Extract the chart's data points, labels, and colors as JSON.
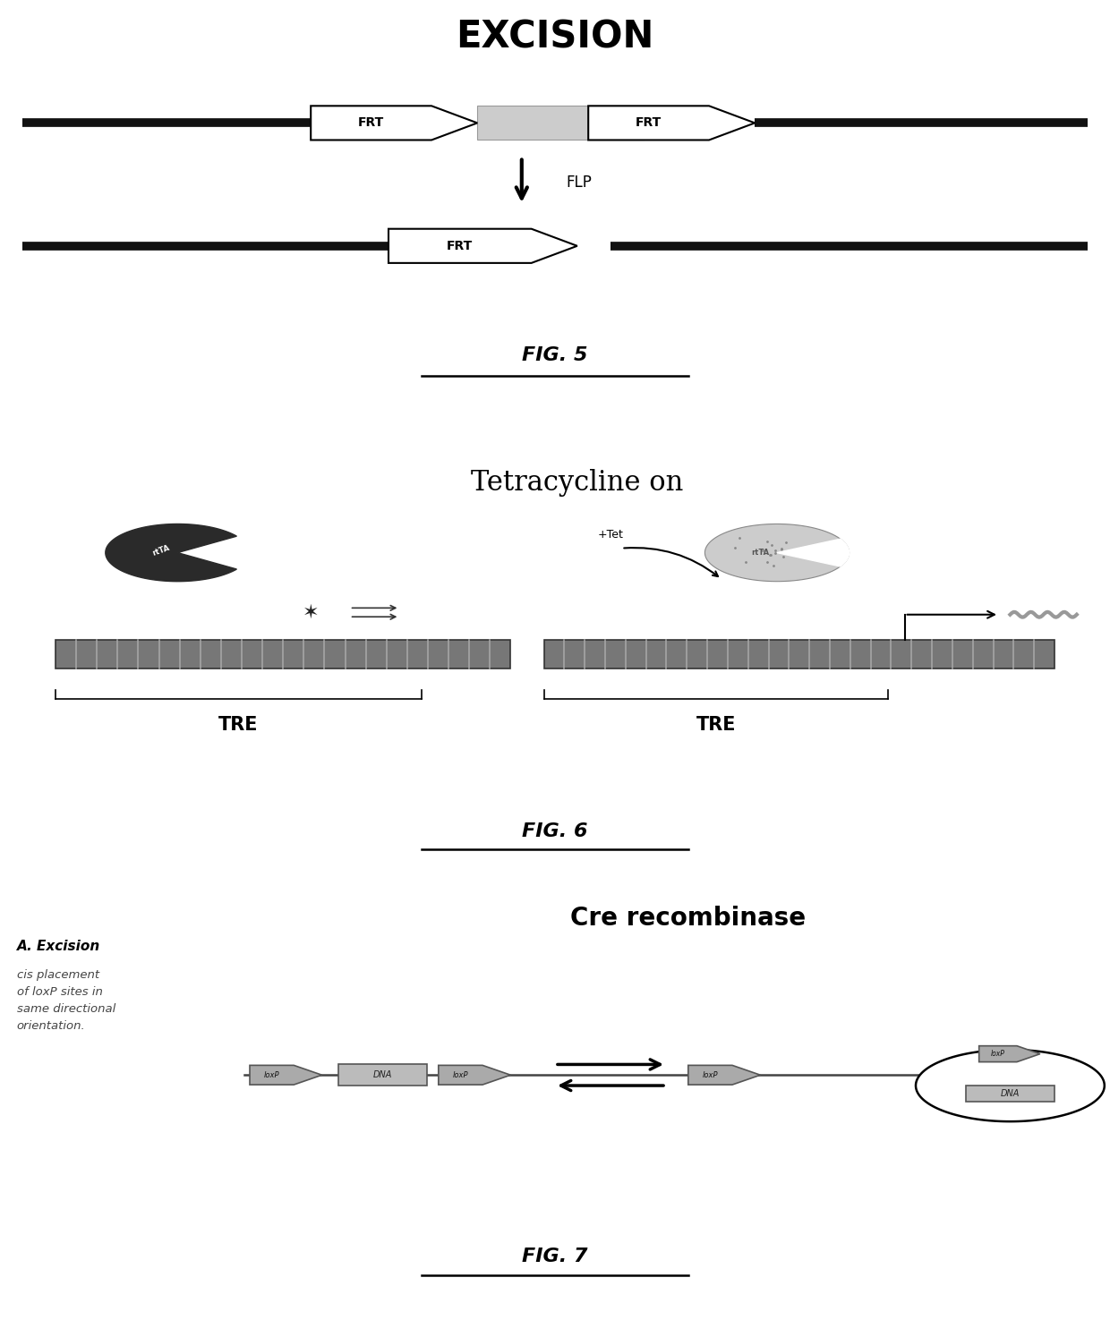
{
  "fig5_title": "EXCISION",
  "fig5_label": "FIG. 5",
  "fig5_flp": "FLP",
  "fig5_frt": "FRT",
  "fig6_title": "Tetracycline on",
  "fig6_label": "FIG. 6",
  "fig6_tet": "+Tet",
  "fig6_tre": "TRE",
  "fig7_title": "Cre recombinase",
  "fig7_label": "FIG. 7",
  "fig7_a_title": "A. Excision",
  "fig7_a_text": "cis placement\nof loxP sites in\nsame directional\norientation.",
  "fig7_dna": "DNA",
  "fig7_loxp": "loxP",
  "bg_color": "#ffffff",
  "dark_color": "#333333",
  "gray_color": "#888888",
  "light_gray": "#cccccc",
  "dna_dark": "#555555",
  "dna_stripe": "#777777"
}
